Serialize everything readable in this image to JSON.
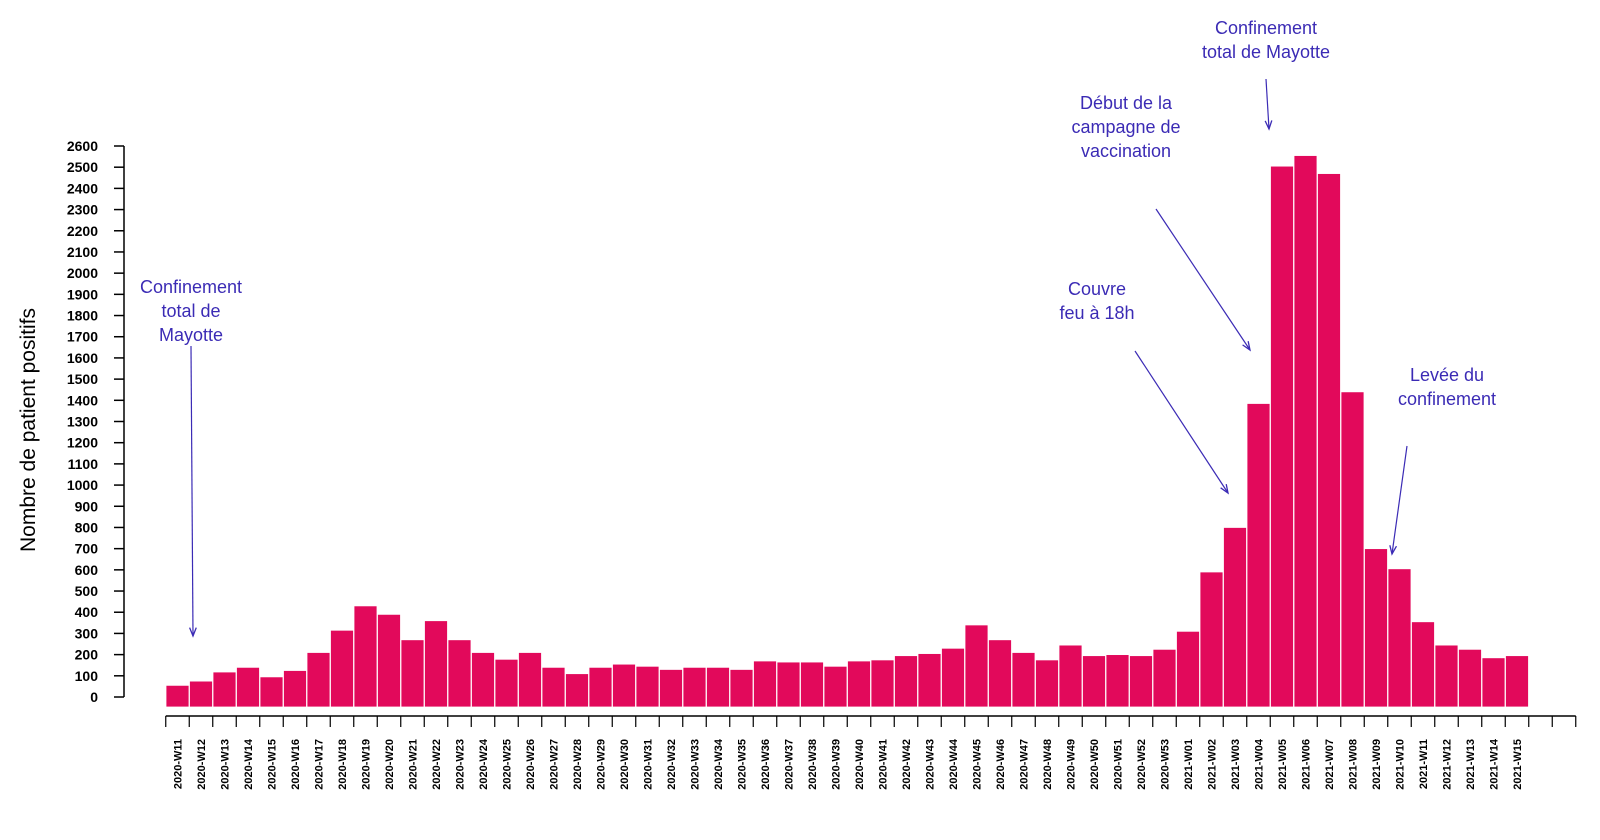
{
  "chart_data": {
    "type": "bar",
    "title": "",
    "xlabel": "",
    "ylabel": "Nombre de patient positifs",
    "ylim": [
      0,
      2600
    ],
    "yticks": [
      0,
      100,
      200,
      300,
      400,
      500,
      600,
      700,
      800,
      900,
      1000,
      1100,
      1200,
      1300,
      1400,
      1500,
      1600,
      1700,
      1800,
      1900,
      2000,
      2100,
      2200,
      2300,
      2400,
      2500,
      2600
    ],
    "grid": false,
    "categories": [
      "2020-W11",
      "2020-W12",
      "2020-W13",
      "2020-W14",
      "2020-W15",
      "2020-W16",
      "2020-W17",
      "2020-W18",
      "2020-W19",
      "2020-W20",
      "2020-W21",
      "2020-W22",
      "2020-W23",
      "2020-W24",
      "2020-W25",
      "2020-W26",
      "2020-W27",
      "2020-W28",
      "2020-W29",
      "2020-W30",
      "2020-W31",
      "2020-W32",
      "2020-W33",
      "2020-W34",
      "2020-W35",
      "2020-W36",
      "2020-W37",
      "2020-W38",
      "2020-W39",
      "2020-W40",
      "2020-W41",
      "2020-W42",
      "2020-W43",
      "2020-W44",
      "2020-W45",
      "2020-W46",
      "2020-W47",
      "2020-W48",
      "2020-W49",
      "2020-W50",
      "2020-W51",
      "2020-W52",
      "2020-W53",
      "2021-W01",
      "2021-W02",
      "2021-W03",
      "2021-W04",
      "2021-W05",
      "2021-W06",
      "2021-W07",
      "2021-W08",
      "2021-W09",
      "2021-W10",
      "2021-W11",
      "2021-W12",
      "2021-W13",
      "2021-W14",
      "2021-W15"
    ],
    "values": [
      55,
      75,
      118,
      140,
      95,
      125,
      210,
      315,
      430,
      390,
      270,
      360,
      270,
      210,
      178,
      210,
      140,
      110,
      140,
      155,
      145,
      130,
      140,
      140,
      130,
      170,
      165,
      165,
      145,
      170,
      175,
      195,
      205,
      230,
      340,
      270,
      210,
      175,
      245,
      195,
      200,
      195,
      225,
      310,
      590,
      800,
      1385,
      2505,
      2555,
      2470,
      1440,
      700,
      605,
      355,
      245,
      225,
      185,
      195
    ],
    "bar_color": "#e2095b",
    "annotations": [
      {
        "text": [
          "Confinement",
          "total de",
          "Mayotte"
        ],
        "category": "2020-W12"
      },
      {
        "text": [
          "Couvre",
          "feu à 18h"
        ],
        "category": "2021-W03"
      },
      {
        "text": [
          "Début de la",
          "campagne de",
          "vaccination"
        ],
        "category": "2021-W04"
      },
      {
        "text": [
          "Confinement",
          "total de Mayotte"
        ],
        "category": "2021-W05"
      },
      {
        "text": [
          "Levée du",
          "confinement"
        ],
        "category": "2021-W10"
      }
    ]
  }
}
